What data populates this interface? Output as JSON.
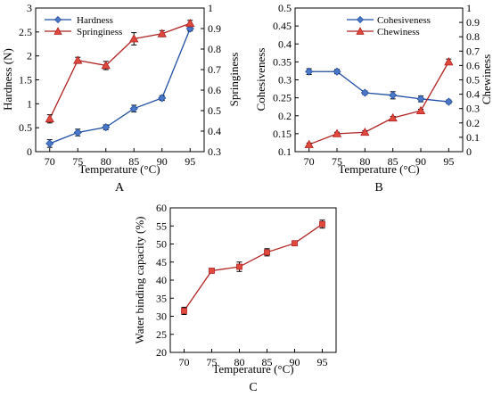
{
  "colors": {
    "blue": "#1f4ea3",
    "blue_fill": "#4c78c8",
    "red": "#b22222",
    "red_fill": "#e04a3c",
    "line": "#000000"
  },
  "chart_data": [
    {
      "panel": "A",
      "type": "line",
      "x": [
        70,
        75,
        80,
        85,
        90,
        95
      ],
      "xlabel": "Temperature (°C)",
      "ylabel": "Hardness (N)",
      "y2label": "Springiness",
      "ylim": [
        0,
        3
      ],
      "yticks": [
        "0",
        "0.5",
        "1",
        "1.5",
        "2",
        "2.5",
        "3"
      ],
      "y2lim": [
        0.3,
        1.0
      ],
      "y2ticks": [
        "0.3",
        "0.4",
        "0.5",
        "0.6",
        "0.7",
        "0.8",
        "0.9",
        "1"
      ],
      "legend": "top-left",
      "series": [
        {
          "name": "Hardness",
          "axis": "left",
          "marker": "diamond",
          "color": "blue",
          "values": [
            0.17,
            0.4,
            0.51,
            0.9,
            1.12,
            2.57
          ],
          "err": [
            0.08,
            0.07,
            0.05,
            0.07,
            0.05,
            0.05
          ]
        },
        {
          "name": "Springiness",
          "axis": "right",
          "marker": "triangle",
          "color": "red",
          "values": [
            0.46,
            0.745,
            0.72,
            0.85,
            0.875,
            0.925
          ],
          "err": [
            0.02,
            0.015,
            0.02,
            0.03,
            0.015,
            0.015
          ]
        }
      ]
    },
    {
      "panel": "B",
      "type": "line",
      "x": [
        70,
        75,
        80,
        85,
        90,
        95
      ],
      "xlabel": "Temperature (°C)",
      "ylabel": "Cohesiveness",
      "y2label": "Chewiness",
      "ylim": [
        0.1,
        0.5
      ],
      "yticks": [
        "0.1",
        "0.15",
        "0.2",
        "0.25",
        "0.3",
        "0.35",
        "0.4",
        "0.45",
        "0.5"
      ],
      "y2lim": [
        0,
        1.0
      ],
      "y2ticks": [
        "0",
        "0.1",
        "0.2",
        "0.3",
        "0.4",
        "0.5",
        "0.6",
        "0.7",
        "0.8",
        "0.9",
        "1"
      ],
      "legend": "top-right",
      "series": [
        {
          "name": "Cohesiveness",
          "axis": "left",
          "marker": "diamond",
          "color": "blue",
          "values": [
            0.323,
            0.323,
            0.264,
            0.257,
            0.247,
            0.239
          ],
          "err": [
            0.008,
            0.006,
            0.005,
            0.01,
            0.008,
            0.005
          ]
        },
        {
          "name": "Chewiness",
          "axis": "right",
          "marker": "triangle",
          "color": "red",
          "values": [
            0.05,
            0.125,
            0.135,
            0.235,
            0.285,
            0.625
          ],
          "err": [
            0.01,
            0.01,
            0.01,
            0.01,
            0.01,
            0.02
          ]
        }
      ]
    },
    {
      "panel": "C",
      "type": "line",
      "x": [
        70,
        75,
        80,
        85,
        90,
        95
      ],
      "xlabel": "Temperature (°C)",
      "ylabel": "Water binding capacity (%)",
      "ylim": [
        20,
        60
      ],
      "yticks": [
        "20",
        "25",
        "30",
        "35",
        "40",
        "45",
        "50",
        "55",
        "60"
      ],
      "series": [
        {
          "axis": "left",
          "marker": "square",
          "color": "red",
          "values": [
            31.5,
            42.6,
            43.7,
            47.7,
            50.2,
            55.5
          ],
          "err": [
            1.0,
            0.5,
            1.3,
            1.0,
            0.6,
            1.1
          ]
        }
      ]
    }
  ]
}
